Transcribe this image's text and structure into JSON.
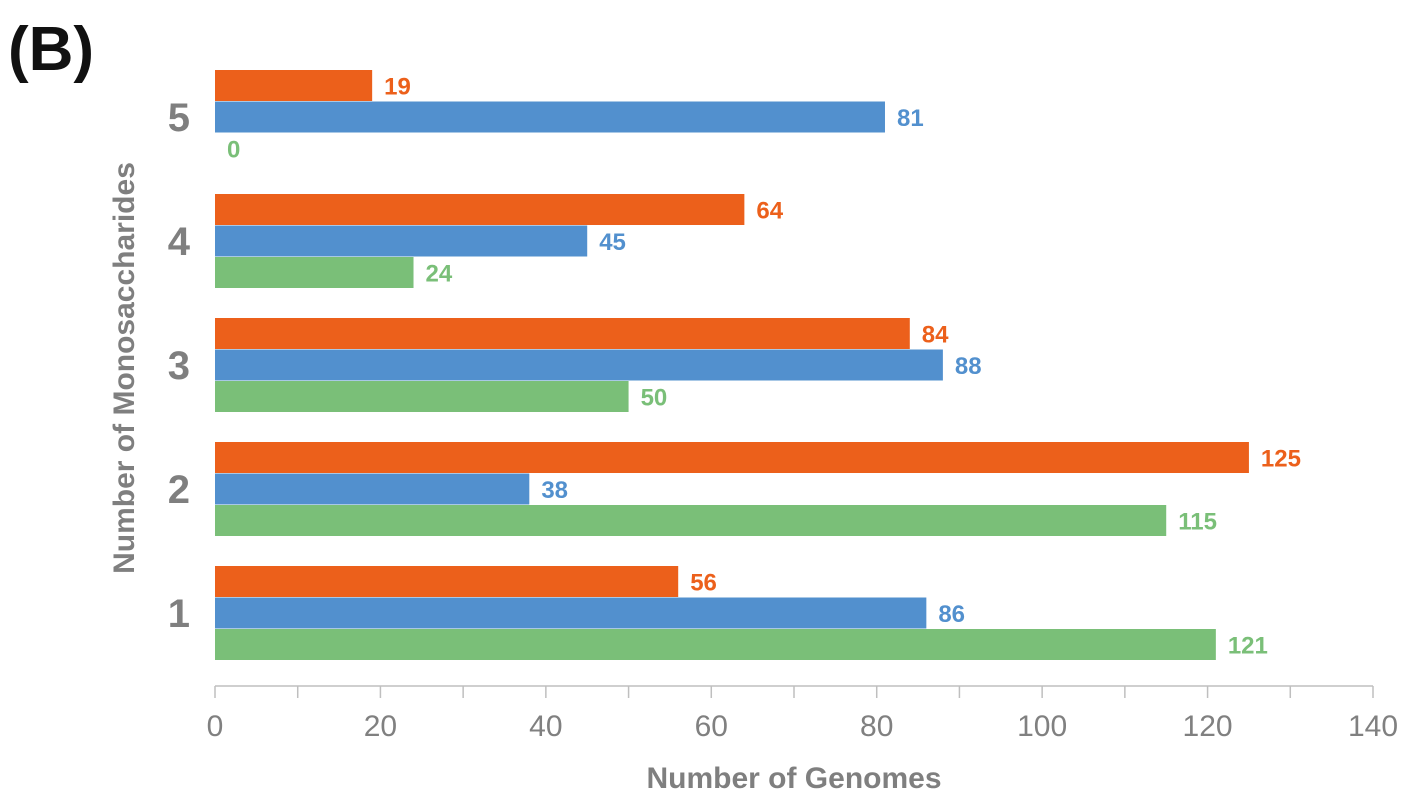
{
  "panel_label": "(B)",
  "chart_data": {
    "type": "bar",
    "orientation": "horizontal",
    "xlabel": "Number of Genomes",
    "ylabel": "Number of Monosaccharides",
    "categories": [
      "1",
      "2",
      "3",
      "4",
      "5"
    ],
    "series": [
      {
        "values": [
          121,
          115,
          50,
          24,
          0
        ],
        "color": "#7abf78"
      },
      {
        "values": [
          86,
          38,
          88,
          45,
          81
        ],
        "color": "#5290ce"
      },
      {
        "values": [
          56,
          125,
          84,
          64,
          19
        ],
        "color": "#ec601b"
      }
    ],
    "xlim": [
      0,
      140
    ],
    "xticks": [
      0,
      20,
      40,
      60,
      80,
      100,
      120,
      140
    ],
    "data_labels": true,
    "grid": false
  }
}
